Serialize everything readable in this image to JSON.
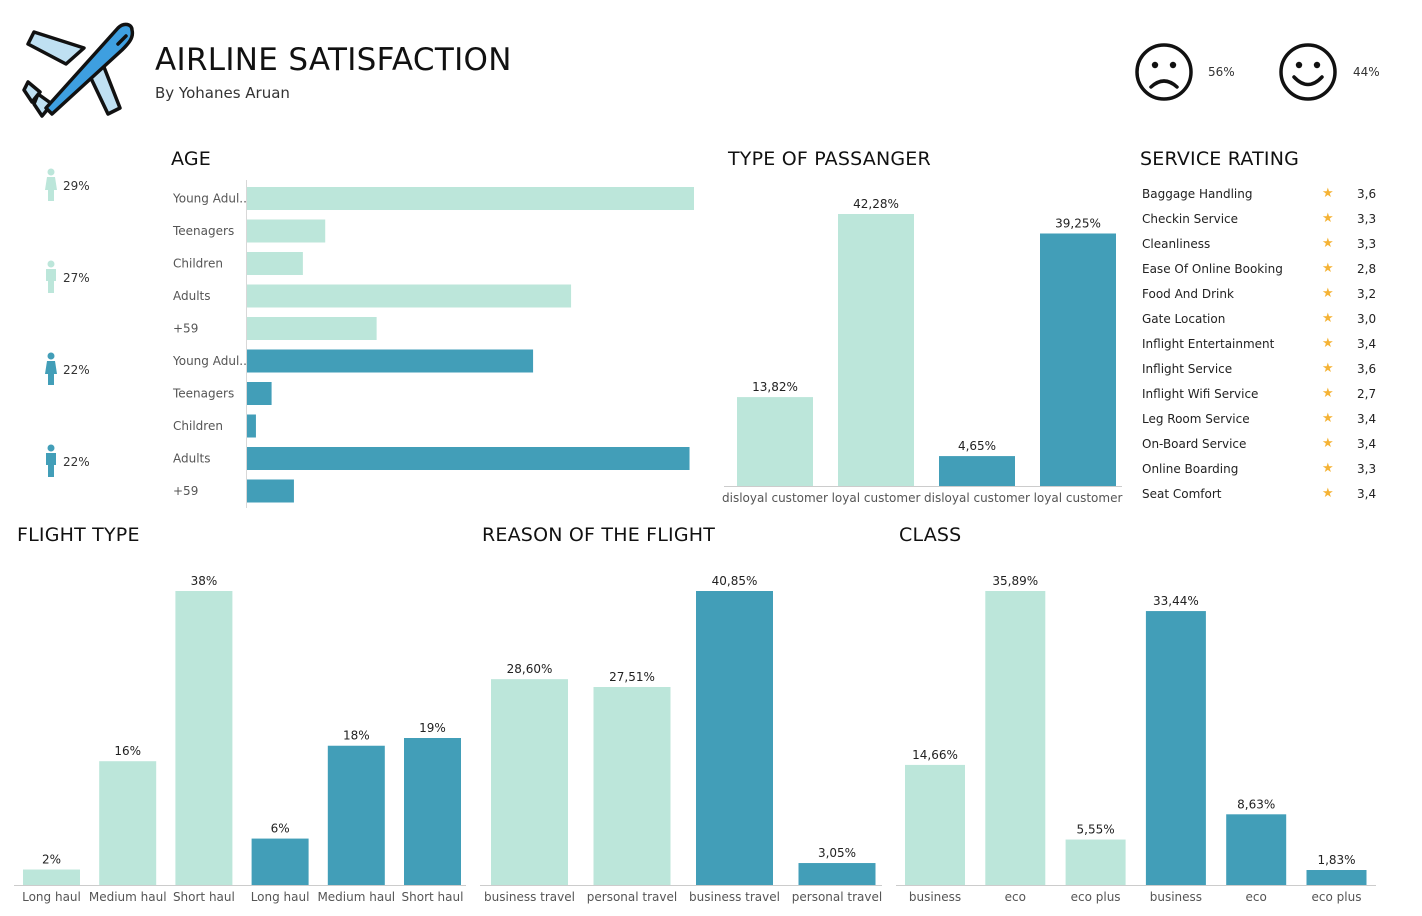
{
  "header": {
    "title": "AIRLINE SATISFACTION",
    "subtitle": "By Yohanes Aruan",
    "dissatisfied_pct": "56%",
    "satisfied_pct": "44%"
  },
  "icons": {
    "logo": "airplane-icon",
    "sad": "sad-face-icon",
    "happy": "happy-face-icon",
    "person": "person-icon"
  },
  "colors": {
    "light": "#bce6da",
    "dark": "#429eb8",
    "star": "#f5b335"
  },
  "sections": {
    "age": "AGE",
    "passenger": "TYPE OF PASSANGER",
    "rating": "SERVICE RATING",
    "flight_type": "FLIGHT TYPE",
    "reason": "REASON OF THE FLIGHT",
    "class": "CLASS"
  },
  "gender_pcts": [
    "29%",
    "27%",
    "22%",
    "22%"
  ],
  "chart_data": [
    {
      "id": "age",
      "type": "bar",
      "orientation": "horizontal",
      "categories": [
        "Young Adul..",
        "Teenagers",
        "Children",
        "Adults",
        "+59",
        "Young Adul..",
        "Teenagers",
        "Children",
        "Adults",
        "+59"
      ],
      "values": [
        100,
        17.5,
        12.5,
        72.5,
        29,
        64,
        5.5,
        2,
        99,
        10.5
      ],
      "group": [
        "light",
        "light",
        "light",
        "light",
        "light",
        "dark",
        "dark",
        "dark",
        "dark",
        "dark"
      ],
      "xlim": [
        0,
        100
      ]
    },
    {
      "id": "passenger",
      "type": "bar",
      "categories": [
        "disloyal customer",
        "loyal customer",
        "disloyal customer",
        "loyal customer"
      ],
      "values": [
        13.82,
        42.28,
        4.65,
        39.25
      ],
      "labels": [
        "13,82%",
        "42,28%",
        "4,65%",
        "39,25%"
      ],
      "group": [
        "light",
        "light",
        "dark",
        "dark"
      ]
    },
    {
      "id": "rating",
      "type": "table",
      "rows": [
        {
          "name": "Baggage Handling",
          "value": "3,6"
        },
        {
          "name": "Checkin Service",
          "value": "3,3"
        },
        {
          "name": "Cleanliness",
          "value": "3,3"
        },
        {
          "name": "Ease Of Online Booking",
          "value": "2,8"
        },
        {
          "name": "Food And Drink",
          "value": "3,2"
        },
        {
          "name": "Gate Location",
          "value": "3,0"
        },
        {
          "name": "Inflight Entertainment",
          "value": "3,4"
        },
        {
          "name": "Inflight Service",
          "value": "3,6"
        },
        {
          "name": "Inflight Wifi Service",
          "value": "2,7"
        },
        {
          "name": "Leg Room Service",
          "value": "3,4"
        },
        {
          "name": "On-Board Service",
          "value": "3,4"
        },
        {
          "name": "Online Boarding",
          "value": "3,3"
        },
        {
          "name": "Seat Comfort",
          "value": "3,4"
        }
      ]
    },
    {
      "id": "flight_type",
      "type": "bar",
      "categories": [
        "Long haul",
        "Medium haul",
        "Short haul",
        "Long haul",
        "Medium haul",
        "Short haul"
      ],
      "values": [
        2,
        16,
        38,
        6,
        18,
        19
      ],
      "labels": [
        "2%",
        "16%",
        "38%",
        "6%",
        "18%",
        "19%"
      ],
      "group": [
        "light",
        "light",
        "light",
        "dark",
        "dark",
        "dark"
      ]
    },
    {
      "id": "reason",
      "type": "bar",
      "categories": [
        "business travel",
        "personal travel",
        "business travel",
        "personal travel"
      ],
      "values": [
        28.6,
        27.51,
        40.85,
        3.05
      ],
      "labels": [
        "28,60%",
        "27,51%",
        "40,85%",
        "3,05%"
      ],
      "group": [
        "light",
        "light",
        "dark",
        "dark"
      ]
    },
    {
      "id": "class",
      "type": "bar",
      "categories": [
        "business",
        "eco",
        "eco plus",
        "business",
        "eco",
        "eco plus"
      ],
      "values": [
        14.66,
        35.89,
        5.55,
        33.44,
        8.63,
        1.83
      ],
      "labels": [
        "14,66%",
        "35,89%",
        "5,55%",
        "33,44%",
        "8,63%",
        "1,83%"
      ],
      "group": [
        "light",
        "light",
        "light",
        "dark",
        "dark",
        "dark"
      ]
    }
  ]
}
